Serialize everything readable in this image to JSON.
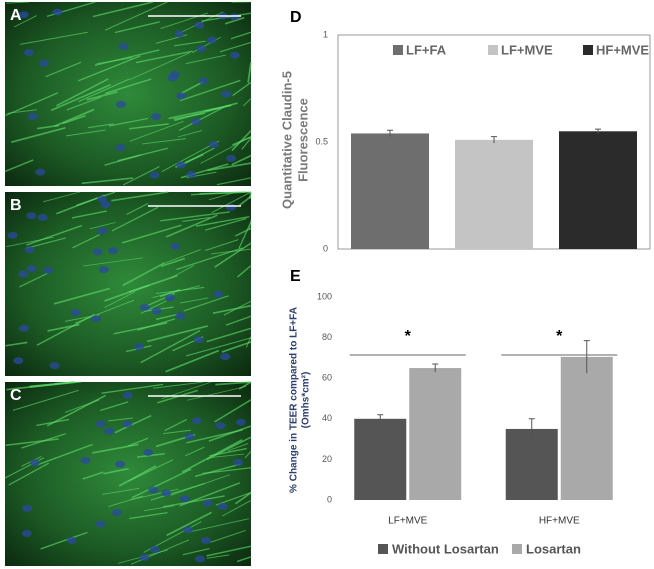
{
  "panels": [
    {
      "label": "A"
    },
    {
      "label": "B"
    },
    {
      "label": "C"
    }
  ],
  "chart_data": [
    {
      "type": "bar",
      "panel_label": "D",
      "ylabel": [
        "Quantitative Claudin-5",
        "Fluorescence"
      ],
      "ylim": [
        0,
        1
      ],
      "yticks": [
        0,
        0.5,
        1
      ],
      "legend": "top",
      "series": [
        {
          "name": "LF+FA",
          "color": "#6e6e6e",
          "values": [
            0.54
          ],
          "errors": [
            0.015
          ]
        },
        {
          "name": "LF+MVE",
          "color": "#c4c4c4",
          "values": [
            0.51
          ],
          "errors": [
            0.015
          ]
        },
        {
          "name": "HF+MVE",
          "color": "#2b2b2b",
          "values": [
            0.55
          ],
          "errors": [
            0.01
          ]
        }
      ]
    },
    {
      "type": "bar",
      "panel_label": "E",
      "ylabel": [
        "% Change in TEER compared to LF+FA",
        "(Omhs*cm²)"
      ],
      "categories": [
        "LF+MVE",
        "HF+MVE"
      ],
      "ylim": [
        0,
        100
      ],
      "yticks": [
        0,
        20,
        40,
        60,
        80,
        100
      ],
      "legend": "bottom",
      "annotations": [
        "*",
        "*"
      ],
      "series": [
        {
          "name": "Without Losartan",
          "color": "#555555",
          "values": [
            40,
            35
          ],
          "errors": [
            2,
            5
          ]
        },
        {
          "name": "Losartan",
          "color": "#a9a9a9",
          "values": [
            65,
            70.5
          ],
          "errors": [
            2,
            8
          ]
        }
      ]
    }
  ]
}
